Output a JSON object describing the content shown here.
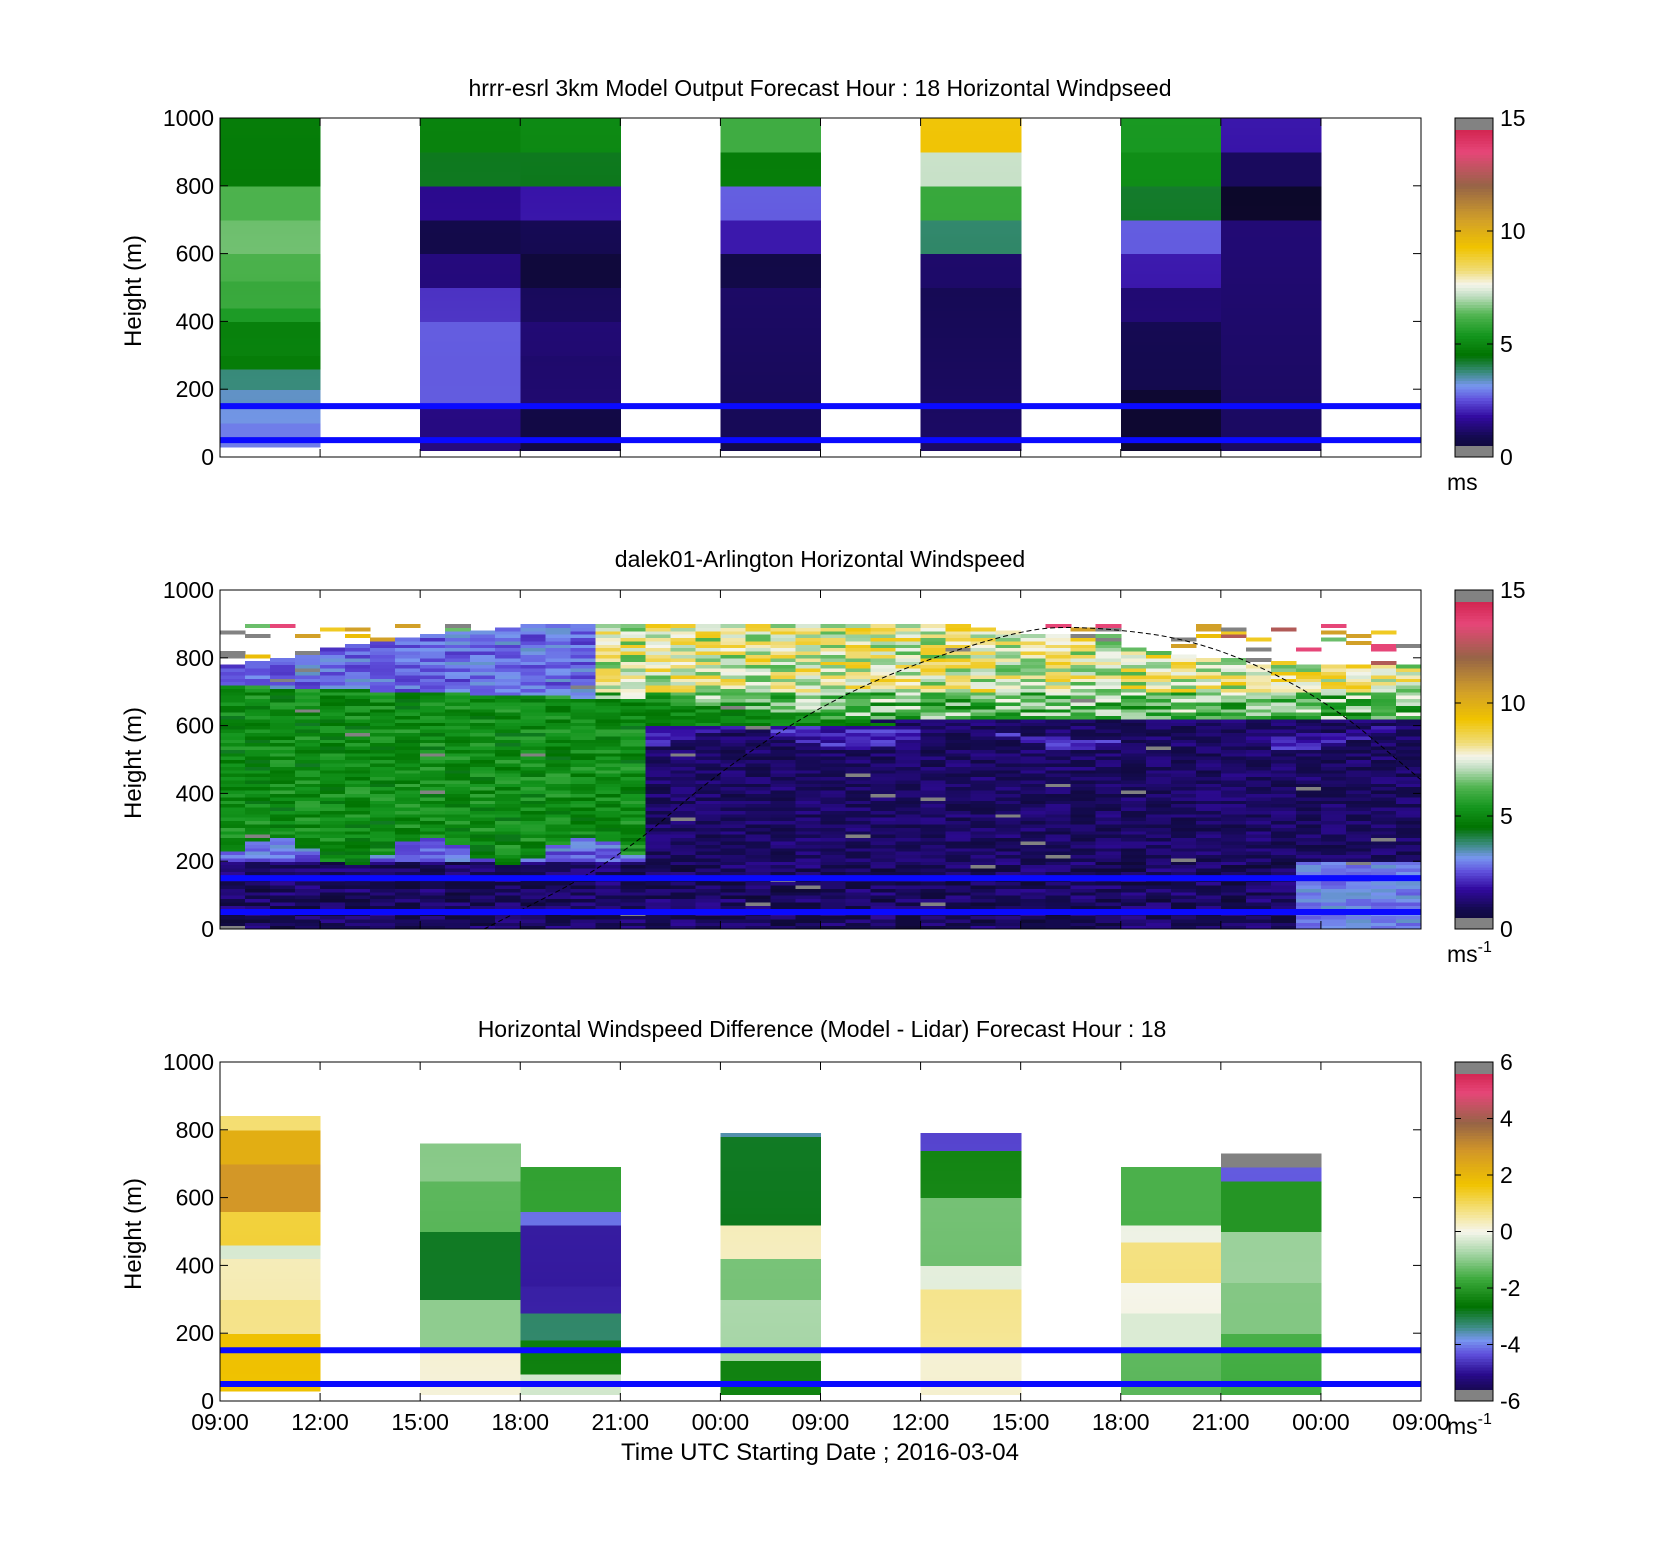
{
  "chart_data": [
    {
      "type": "heatmap",
      "title": "hrrr-esrl 3km Model Output   Forecast Hour : 18 Horizontal Windpseed",
      "ylabel": "Height (m)",
      "ylim": [
        0,
        1000
      ],
      "yticks": [
        0,
        200,
        400,
        600,
        800,
        1000
      ],
      "xticks": [
        "09:00",
        "12:00",
        "15:00",
        "18:00",
        "21:00",
        "00:00",
        "09:00",
        "12:00",
        "15:00",
        "18:00",
        "21:00",
        "00:00",
        "09:00"
      ],
      "colorbar": {
        "range": [
          0,
          15
        ],
        "ticks": [
          0,
          5,
          10,
          15
        ],
        "unit": "ms"
      },
      "reference_lines_m": [
        50,
        150
      ],
      "columns": [
        {
          "slot": 0,
          "y_from": 30,
          "y_to": 1000,
          "layers": [
            [
              30,
              100,
              2.7
            ],
            [
              100,
              160,
              3.0
            ],
            [
              160,
              200,
              3.5
            ],
            [
              200,
              260,
              4.0
            ],
            [
              260,
              300,
              4.5
            ],
            [
              300,
              400,
              4.9
            ],
            [
              400,
              440,
              5.3
            ],
            [
              440,
              520,
              5.9
            ],
            [
              520,
              600,
              6.2
            ],
            [
              600,
              700,
              6.6
            ],
            [
              700,
              800,
              6.0
            ],
            [
              800,
              1000,
              4.9
            ]
          ]
        },
        {
          "slot": 2,
          "y_from": 20,
          "y_to": 1000,
          "layers": [
            [
              20,
              150,
              1.6
            ],
            [
              150,
              300,
              2.4
            ],
            [
              300,
              400,
              2.9
            ],
            [
              400,
              500,
              2.2
            ],
            [
              500,
              600,
              1.2
            ],
            [
              600,
              700,
              1.0
            ],
            [
              700,
              800,
              1.6
            ],
            [
              800,
              900,
              4.1
            ],
            [
              900,
              1000,
              5.1
            ]
          ]
        },
        {
          "slot": 3,
          "y_from": 20,
          "y_to": 1000,
          "layers": [
            [
              20,
              150,
              0.6
            ],
            [
              150,
              300,
              1.1
            ],
            [
              300,
              400,
              1.4
            ],
            [
              400,
              500,
              1.2
            ],
            [
              500,
              600,
              0.2
            ],
            [
              600,
              700,
              1.0
            ],
            [
              700,
              800,
              2.1
            ],
            [
              800,
              900,
              4.1
            ],
            [
              900,
              1000,
              5.1
            ]
          ]
        },
        {
          "slot": 5,
          "y_from": 20,
          "y_to": 1000,
          "layers": [
            [
              20,
              50,
              0.6
            ],
            [
              50,
              500,
              1.1
            ],
            [
              500,
              600,
              0.8
            ],
            [
              600,
              700,
              1.7
            ],
            [
              700,
              800,
              2.8
            ],
            [
              800,
              900,
              4.9
            ],
            [
              900,
              1000,
              5.8
            ]
          ]
        },
        {
          "slot": 7,
          "y_from": 20,
          "y_to": 1000,
          "layers": [
            [
              20,
              500,
              1.1
            ],
            [
              500,
              600,
              1.4
            ],
            [
              600,
              700,
              3.9
            ],
            [
              700,
              800,
              5.7
            ],
            [
              800,
              900,
              7.4
            ],
            [
              900,
              1000,
              9.3
            ]
          ]
        },
        {
          "slot": 9,
          "y_from": 20,
          "y_to": 1000,
          "layers": [
            [
              20,
              200,
              0.4
            ],
            [
              200,
              400,
              0.8
            ],
            [
              400,
              500,
              1.2
            ],
            [
              500,
              600,
              1.8
            ],
            [
              600,
              700,
              2.9
            ],
            [
              700,
              800,
              4.2
            ],
            [
              800,
              900,
              5.0
            ],
            [
              900,
              1000,
              5.7
            ]
          ]
        },
        {
          "slot": 10,
          "y_from": 20,
          "y_to": 1000,
          "layers": [
            [
              20,
              700,
              1.3
            ],
            [
              700,
              800,
              0.2
            ],
            [
              800,
              900,
              0.8
            ],
            [
              900,
              1000,
              2.0
            ]
          ]
        }
      ]
    },
    {
      "type": "heatmap",
      "title": "dalek01-Arlington  Horizontal Windspeed",
      "ylabel": "Height (m)",
      "ylim": [
        0,
        1000
      ],
      "yticks": [
        0,
        200,
        400,
        600,
        800,
        1000
      ],
      "colorbar": {
        "range": [
          0,
          15
        ],
        "ticks": [
          0,
          5,
          10,
          15
        ],
        "unit": "ms",
        "unit_exponent": "-1"
      },
      "reference_lines_m": [
        50,
        150
      ],
      "boundary_layer_curve_m": [
        [
          0.22,
          0
        ],
        [
          0.33,
          200
        ],
        [
          0.42,
          480
        ],
        [
          0.53,
          720
        ],
        [
          0.66,
          880
        ],
        [
          0.72,
          895
        ],
        [
          0.82,
          850
        ],
        [
          0.92,
          680
        ],
        [
          1.0,
          440
        ]
      ]
    },
    {
      "type": "heatmap",
      "title": "Horizontal Windspeed Difference (Model - Lidar) Forecast Hour : 18",
      "ylabel": "Height (m)",
      "xlabel": "Time UTC  Starting Date ; 2016-03-04",
      "ylim": [
        0,
        1000
      ],
      "yticks": [
        0,
        200,
        400,
        600,
        800,
        1000
      ],
      "xticks": [
        "09:00",
        "12:00",
        "15:00",
        "18:00",
        "21:00",
        "00:00",
        "09:00",
        "12:00",
        "15:00",
        "18:00",
        "21:00",
        "00:00",
        "09:00"
      ],
      "colorbar": {
        "range": [
          -6,
          6
        ],
        "ticks": [
          -6,
          -4,
          -2,
          0,
          2,
          4,
          6
        ],
        "unit": "ms",
        "unit_exponent": "-1"
      },
      "reference_lines_m": [
        50,
        150
      ],
      "columns": [
        {
          "slot": 0,
          "y_from": 30,
          "y_to": 840,
          "layers": [
            [
              30,
              200,
              1.5
            ],
            [
              200,
              300,
              0.9
            ],
            [
              300,
              420,
              0.4
            ],
            [
              420,
              460,
              -0.5
            ],
            [
              460,
              560,
              1.4
            ],
            [
              560,
              700,
              2.6
            ],
            [
              700,
              800,
              2.0
            ],
            [
              800,
              840,
              1.0
            ]
          ]
        },
        {
          "slot": 2,
          "y_from": 20,
          "y_to": 760,
          "layers": [
            [
              20,
              150,
              0.3
            ],
            [
              150,
              300,
              -1.2
            ],
            [
              300,
              500,
              -2.6
            ],
            [
              500,
              650,
              -1.6
            ],
            [
              650,
              760,
              -0.8
            ]
          ]
        },
        {
          "slot": 3,
          "y_from": 20,
          "y_to": 690,
          "layers": [
            [
              20,
              80,
              -0.4
            ],
            [
              80,
              180,
              -2.5
            ],
            [
              180,
              260,
              -3.4
            ],
            [
              260,
              340,
              -4.6
            ],
            [
              340,
              520,
              -5.1
            ],
            [
              520,
              560,
              -4.2
            ],
            [
              560,
              690,
              -1.6
            ]
          ]
        },
        {
          "slot": 5,
          "y_from": 20,
          "y_to": 790,
          "layers": [
            [
              20,
              120,
              -2.6
            ],
            [
              120,
              300,
              -0.7
            ],
            [
              300,
              420,
              -1.4
            ],
            [
              420,
              520,
              0.3
            ],
            [
              520,
              780,
              -2.6
            ],
            [
              780,
              790,
              -3.6
            ]
          ]
        },
        {
          "slot": 7,
          "y_from": 20,
          "y_to": 790,
          "layers": [
            [
              20,
              150,
              0.3
            ],
            [
              150,
              330,
              0.7
            ],
            [
              330,
              400,
              -0.4
            ],
            [
              400,
              600,
              -1.4
            ],
            [
              600,
              740,
              -2.3
            ],
            [
              740,
              790,
              -4.5
            ]
          ]
        },
        {
          "slot": 9,
          "y_from": 20,
          "y_to": 690,
          "layers": [
            [
              20,
              150,
              -1.2
            ],
            [
              150,
              260,
              -0.5
            ],
            [
              260,
              350,
              0.0
            ],
            [
              350,
              470,
              0.9
            ],
            [
              470,
              520,
              -0.2
            ],
            [
              520,
              690,
              -1.8
            ]
          ]
        },
        {
          "slot": 10,
          "y_from": 20,
          "y_to": 730,
          "layers": [
            [
              20,
              200,
              -1.6
            ],
            [
              200,
              350,
              -1.3
            ],
            [
              350,
              500,
              -0.6
            ],
            [
              500,
              650,
              -2.3
            ],
            [
              650,
              690,
              -4.0
            ],
            [
              690,
              730,
              6.0
            ]
          ]
        }
      ]
    }
  ]
}
